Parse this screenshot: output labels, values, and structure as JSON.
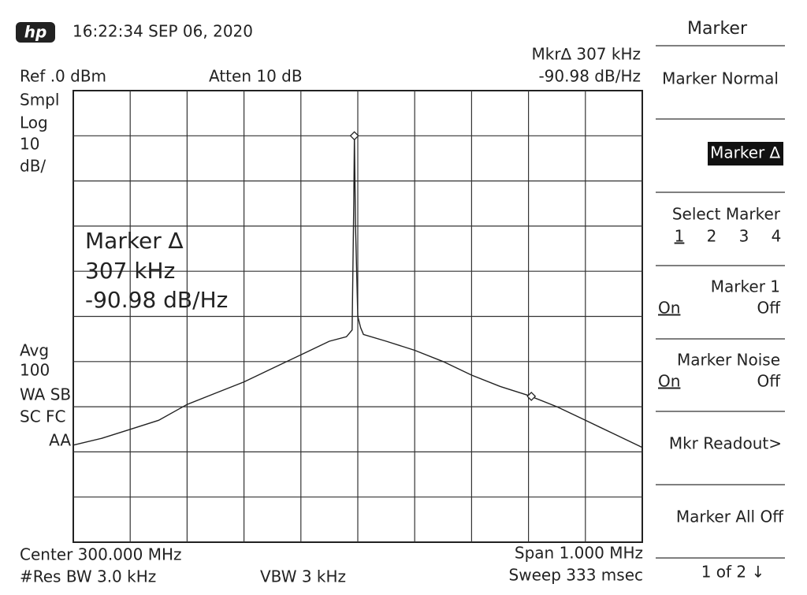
{
  "header": {
    "logo": "hp",
    "timestamp": "16:22:34 SEP 06, 2020"
  },
  "readout": {
    "marker": "Mkr∆ 307 kHz",
    "value": "-90.98 dB/Hz"
  },
  "settings": {
    "ref": "Ref .0 dBm",
    "atten": "Atten 10 dB",
    "left": [
      "Smpl",
      "Log",
      "10",
      "dB/"
    ],
    "avg": [
      "Avg",
      "100",
      "WA SB",
      "SC FC",
      "AA"
    ]
  },
  "annotation": [
    "Marker ∆",
    "307 kHz",
    "-90.98 dB/Hz"
  ],
  "footer": {
    "center": "Center 300.000 MHz",
    "span": "Span 1.000 MHz",
    "rbw": "#Res BW 3.0 kHz",
    "vbw": "VBW 3 kHz",
    "sweep": "Sweep 333 msec"
  },
  "menu": {
    "title": "Marker",
    "normal": "Marker Normal",
    "delta": "Marker ∆",
    "select": "Select Marker",
    "numbers": [
      "1",
      "2",
      "3",
      "4"
    ],
    "marker1": "Marker 1",
    "marker1_on": "On",
    "marker1_off": "Off",
    "noise": "Marker Noise",
    "noise_on": "On",
    "noise_off": "Off",
    "readout": "Mkr Readout>",
    "all_off": "Marker All Off",
    "page": "1 of 2 ↓"
  },
  "chart_data": {
    "type": "line",
    "color": "#222",
    "xlim": [
      299.5,
      300.5
    ],
    "ylim": [
      -100,
      0
    ],
    "grid": true,
    "x": [
      299.5,
      299.55,
      299.6,
      299.65,
      299.7,
      299.75,
      299.8,
      299.85,
      299.9,
      299.95,
      299.98,
      299.99,
      299.993,
      299.994,
      299.996,
      300.0,
      300.005,
      300.01,
      300.05,
      300.1,
      300.15,
      300.2,
      300.25,
      300.3,
      300.35,
      300.4,
      300.45,
      300.5
    ],
    "values": [
      -78.5,
      -77,
      -75,
      -73,
      -69.5,
      -67,
      -64.5,
      -61.5,
      -58.5,
      -55.5,
      -54.5,
      -53,
      -25,
      -10,
      -30,
      -50,
      -52.5,
      -54,
      -55.5,
      -57.5,
      -60,
      -63,
      -65.5,
      -67.5,
      -70,
      -73,
      -76,
      -79
    ],
    "markers": {
      "x": [
        299.994,
        300.305
      ],
      "values": [
        -10,
        -67.7
      ]
    }
  }
}
